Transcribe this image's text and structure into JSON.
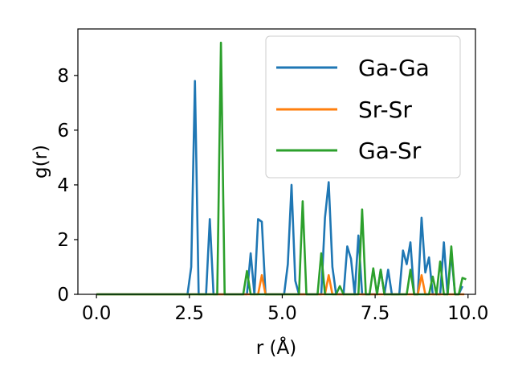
{
  "chart_data": {
    "type": "line",
    "xlabel": "r (Å)",
    "ylabel": "g(r)",
    "xlim": [
      -0.5,
      10.2
    ],
    "ylim": [
      0,
      9.7
    ],
    "xticks": [
      0.0,
      2.5,
      5.0,
      7.5,
      10.0
    ],
    "xtick_labels": [
      "0.0",
      "2.5",
      "5.0",
      "7.5",
      "10.0"
    ],
    "yticks": [
      0,
      2,
      4,
      6,
      8
    ],
    "ytick_labels": [
      "0",
      "2",
      "4",
      "6",
      "8"
    ],
    "grid": false,
    "legend_position": "upper right",
    "series": [
      {
        "name": "Ga-Ga",
        "color": "#1f77b4",
        "x": [
          0.0,
          2.45,
          2.55,
          2.65,
          2.75,
          2.95,
          3.05,
          3.15,
          3.25,
          4.05,
          4.15,
          4.25,
          4.35,
          4.45,
          4.55,
          4.7,
          5.05,
          5.15,
          5.25,
          5.35,
          5.45,
          6.05,
          6.15,
          6.25,
          6.35,
          6.45,
          6.65,
          6.75,
          6.85,
          6.95,
          7.05,
          7.15,
          7.25,
          7.55,
          7.65,
          7.75,
          7.85,
          7.95,
          8.05,
          8.15,
          8.25,
          8.35,
          8.45,
          8.55,
          8.65,
          8.75,
          8.85,
          8.95,
          9.05,
          9.25,
          9.35,
          9.45,
          9.55,
          9.65,
          9.75,
          9.85
        ],
        "y": [
          0.0,
          0.0,
          1.0,
          7.8,
          0.0,
          0.0,
          2.75,
          0.0,
          0.0,
          0.0,
          1.5,
          0.0,
          2.75,
          2.65,
          0.0,
          0.0,
          0.0,
          1.1,
          4.0,
          0.5,
          0.0,
          0.0,
          2.8,
          4.1,
          1.0,
          0.0,
          0.0,
          1.75,
          1.3,
          0.0,
          2.15,
          0.0,
          0.0,
          0.0,
          0.9,
          0.0,
          0.9,
          0.0,
          0.0,
          0.0,
          1.6,
          1.1,
          1.9,
          0.0,
          0.0,
          2.8,
          0.8,
          1.35,
          0.0,
          0.0,
          1.9,
          0.0,
          1.5,
          0.0,
          0.0,
          0.3
        ]
      },
      {
        "name": "Sr-Sr",
        "color": "#ff7f0e",
        "x": [
          0.0,
          4.35,
          4.45,
          4.55,
          6.15,
          6.25,
          6.35,
          8.65,
          8.75,
          8.85,
          9.9
        ],
        "y": [
          0.0,
          0.0,
          0.7,
          0.0,
          0.0,
          0.7,
          0.0,
          0.0,
          0.7,
          0.0,
          0.0
        ]
      },
      {
        "name": "Ga-Sr",
        "color": "#2ca02c",
        "x": [
          0.0,
          3.25,
          3.35,
          3.45,
          3.95,
          4.05,
          4.15,
          5.45,
          5.55,
          5.65,
          5.95,
          6.05,
          6.15,
          6.45,
          6.55,
          6.65,
          7.05,
          7.15,
          7.25,
          7.35,
          7.45,
          7.55,
          7.65,
          7.75,
          7.85,
          7.95,
          8.35,
          8.45,
          8.55,
          8.95,
          9.05,
          9.15,
          9.25,
          9.35,
          9.45,
          9.55,
          9.65,
          9.75,
          9.85,
          9.95
        ],
        "y": [
          0.0,
          0.0,
          9.2,
          0.0,
          0.0,
          0.85,
          0.0,
          0.0,
          3.4,
          0.0,
          0.0,
          1.5,
          0.0,
          0.0,
          0.3,
          0.0,
          0.0,
          3.1,
          0.0,
          0.0,
          0.95,
          0.0,
          0.9,
          0.0,
          0.0,
          0.0,
          0.0,
          0.9,
          0.0,
          0.0,
          0.65,
          0.0,
          1.2,
          0.0,
          0.0,
          1.75,
          0.0,
          0.0,
          0.6,
          0.55
        ]
      }
    ]
  }
}
